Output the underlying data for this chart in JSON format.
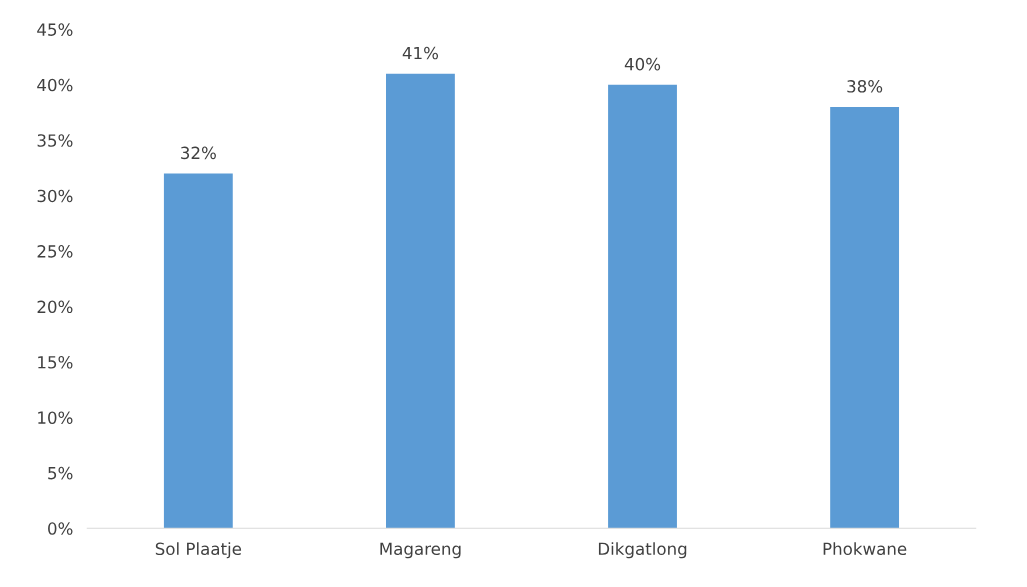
{
  "chart_data": {
    "type": "bar",
    "categories": [
      "Sol Plaatje",
      "Magareng",
      "Dikgatlong",
      "Phokwane"
    ],
    "values": [
      32,
      41,
      40,
      38
    ],
    "value_labels": [
      "32%",
      "41%",
      "40%",
      "38%"
    ],
    "color": "#5b9bd5",
    "ylim": [
      0,
      45
    ],
    "yticks": [
      {
        "value": 0,
        "label": "0%"
      },
      {
        "value": 5,
        "label": "5%"
      },
      {
        "value": 10,
        "label": "10%"
      },
      {
        "value": 15,
        "label": "15%"
      },
      {
        "value": 20,
        "label": "20%"
      },
      {
        "value": 25,
        "label": "25%"
      },
      {
        "value": 30,
        "label": "30%"
      },
      {
        "value": 35,
        "label": "35%"
      },
      {
        "value": 40,
        "label": "40%"
      },
      {
        "value": 45,
        "label": "45%"
      }
    ],
    "grid": false,
    "legend": false
  }
}
